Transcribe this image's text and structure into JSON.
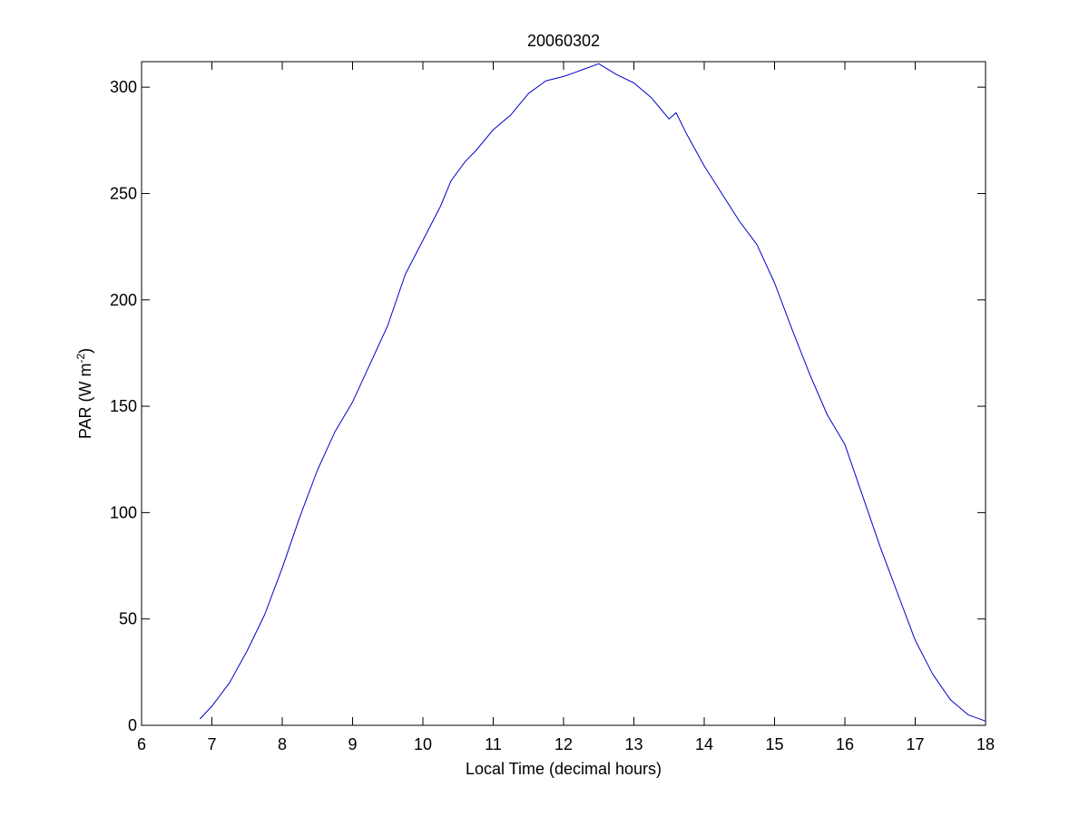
{
  "chart_data": {
    "type": "line",
    "title": "20060302",
    "xlabel": "Local Time (decimal hours)",
    "ylabel": {
      "main": "PAR (W m",
      "superscript": "-2",
      "close": ")"
    },
    "xlim": [
      6,
      18
    ],
    "ylim": [
      0,
      312
    ],
    "xticks": [
      6,
      7,
      8,
      9,
      10,
      11,
      12,
      13,
      14,
      15,
      16,
      17,
      18
    ],
    "yticks": [
      0,
      50,
      100,
      150,
      200,
      250,
      300
    ],
    "grid": false,
    "legend": "none",
    "series": [
      {
        "color": "#0000cc",
        "x": [
          6.83,
          7.0,
          7.25,
          7.5,
          7.75,
          8.0,
          8.25,
          8.5,
          8.75,
          9.0,
          9.25,
          9.5,
          9.75,
          10.0,
          10.25,
          10.4,
          10.6,
          10.75,
          11.0,
          11.25,
          11.5,
          11.75,
          12.0,
          12.25,
          12.5,
          12.75,
          13.0,
          13.25,
          13.5,
          13.6,
          13.75,
          14.0,
          14.25,
          14.5,
          14.75,
          15.0,
          15.25,
          15.5,
          15.75,
          16.0,
          16.25,
          16.5,
          16.75,
          17.0,
          17.25,
          17.5,
          17.75,
          18.0
        ],
        "y": [
          3,
          9,
          20,
          35,
          52,
          74,
          98,
          120,
          138,
          152,
          170,
          188,
          212,
          228,
          244,
          256,
          265,
          270,
          280,
          287,
          297,
          303,
          305,
          308,
          311,
          306,
          302,
          295,
          285,
          288,
          278,
          263,
          250,
          237,
          226,
          208,
          186,
          165,
          146,
          132,
          108,
          84,
          62,
          40,
          24,
          12,
          5,
          2
        ]
      }
    ]
  }
}
